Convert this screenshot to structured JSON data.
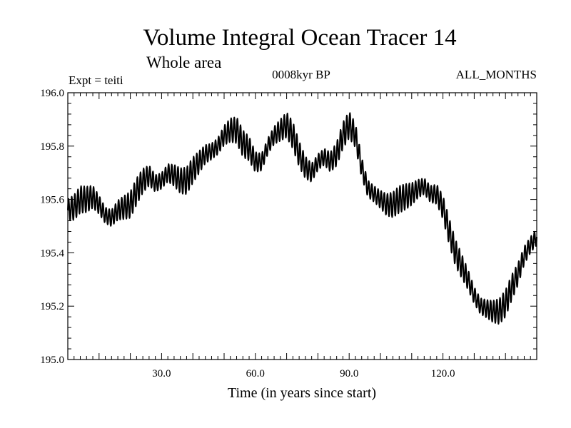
{
  "chart_data": {
    "type": "line",
    "title": "Volume Integral Ocean Tracer 14",
    "subtitle": "Whole area",
    "labels": {
      "left": "Expt = teiti",
      "center": "0008kyr BP",
      "right": "ALL_MONTHS"
    },
    "xlabel": "Time (in years since start)",
    "ylabel": "",
    "xlim": [
      0,
      150
    ],
    "ylim": [
      195.0,
      196.0
    ],
    "x_ticks": [
      30,
      60,
      90,
      120
    ],
    "x_tick_labels": [
      "30.0",
      "60.0",
      "90.0",
      "120.0"
    ],
    "y_ticks": [
      195.0,
      195.2,
      195.4,
      195.6,
      195.8,
      196.0
    ],
    "y_tick_labels": [
      "195.0",
      "195.2",
      "195.4",
      "195.6",
      "195.8",
      "196.0"
    ],
    "grid": false,
    "line_color": "#000000",
    "annual_cycle_amplitude": 0.05,
    "series": [
      {
        "x": [
          0,
          2,
          4,
          6,
          8,
          10,
          12,
          14,
          16,
          18,
          20,
          22,
          24,
          26,
          28,
          30,
          32,
          34,
          36,
          38,
          40,
          42,
          44,
          46,
          48,
          50,
          52,
          54,
          56,
          58,
          60,
          62,
          64,
          66,
          68,
          70,
          72,
          74,
          76,
          78,
          80,
          82,
          84,
          86,
          88,
          90,
          92,
          94,
          96,
          98,
          100,
          102,
          104,
          106,
          108,
          110,
          112,
          114,
          116,
          118,
          120,
          122,
          124,
          126,
          128,
          130,
          132,
          134,
          136,
          138,
          140,
          142,
          144,
          146,
          148,
          150
        ],
        "y": [
          195.56,
          195.57,
          195.6,
          195.6,
          195.61,
          195.58,
          195.54,
          195.53,
          195.56,
          195.57,
          195.58,
          195.63,
          195.67,
          195.69,
          195.66,
          195.67,
          195.7,
          195.69,
          195.67,
          195.67,
          195.71,
          195.74,
          195.77,
          195.78,
          195.8,
          195.84,
          195.86,
          195.86,
          195.81,
          195.79,
          195.74,
          195.74,
          195.8,
          195.84,
          195.86,
          195.88,
          195.84,
          195.77,
          195.72,
          195.7,
          195.74,
          195.76,
          195.74,
          195.77,
          195.84,
          195.88,
          195.84,
          195.72,
          195.64,
          195.62,
          195.6,
          195.58,
          195.58,
          195.6,
          195.61,
          195.62,
          195.64,
          195.65,
          195.62,
          195.62,
          195.57,
          195.48,
          195.4,
          195.35,
          195.3,
          195.24,
          195.2,
          195.19,
          195.18,
          195.18,
          195.21,
          195.27,
          195.32,
          195.39,
          195.43,
          195.46
        ]
      }
    ]
  }
}
